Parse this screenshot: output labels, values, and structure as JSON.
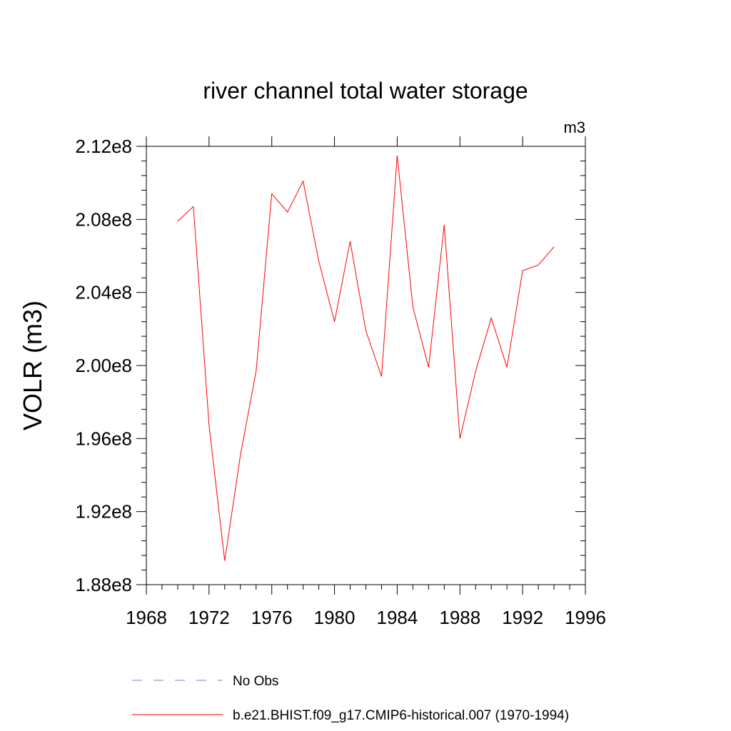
{
  "chart_data": {
    "type": "line",
    "title": "river channel total water storage",
    "units_label": "m3",
    "ylabel": "VOLR  (m3)",
    "xlabel": "",
    "xlim": [
      1968,
      1996
    ],
    "ylim": [
      188000000,
      212000000
    ],
    "x_ticks": [
      {
        "value": 1968,
        "label": "1968"
      },
      {
        "value": 1972,
        "label": "1972"
      },
      {
        "value": 1976,
        "label": "1976"
      },
      {
        "value": 1980,
        "label": "1980"
      },
      {
        "value": 1984,
        "label": "1984"
      },
      {
        "value": 1988,
        "label": "1988"
      },
      {
        "value": 1992,
        "label": "1992"
      },
      {
        "value": 1996,
        "label": "1996"
      }
    ],
    "y_ticks": [
      {
        "value": 188000000,
        "label": "1.88e8"
      },
      {
        "value": 192000000,
        "label": "1.92e8"
      },
      {
        "value": 196000000,
        "label": "1.96e8"
      },
      {
        "value": 200000000,
        "label": "2.00e8"
      },
      {
        "value": 204000000,
        "label": "2.04e8"
      },
      {
        "value": 208000000,
        "label": "2.08e8"
      },
      {
        "value": 212000000,
        "label": "2.12e8"
      }
    ],
    "grid": false,
    "legend_position": "bottom",
    "series": [
      {
        "name": "b.e21.BHIST.f09_g17.CMIP6-historical.007 (1970-1994)",
        "color": "#ff0000",
        "style": "solid",
        "x": [
          1970,
          1971,
          1972,
          1973,
          1974,
          1975,
          1976,
          1977,
          1978,
          1979,
          1980,
          1981,
          1982,
          1983,
          1984,
          1985,
          1986,
          1987,
          1988,
          1989,
          1990,
          1991,
          1992,
          1993,
          1994
        ],
        "y": [
          207900000,
          208700000,
          196700000,
          189300000,
          195100000,
          199700000,
          209400000,
          208400000,
          210100000,
          205700000,
          202400000,
          206800000,
          201900000,
          199400000,
          211500000,
          203200000,
          199900000,
          207700000,
          196000000,
          199700000,
          202600000,
          199900000,
          205200000,
          205500000,
          206500000
        ]
      }
    ],
    "legend": [
      {
        "label": "No Obs",
        "color": "#8080c0",
        "style": "dashed"
      },
      {
        "label": "b.e21.BHIST.f09_g17.CMIP6-historical.007 (1970-1994)",
        "color": "#ff0000",
        "style": "solid"
      }
    ]
  }
}
